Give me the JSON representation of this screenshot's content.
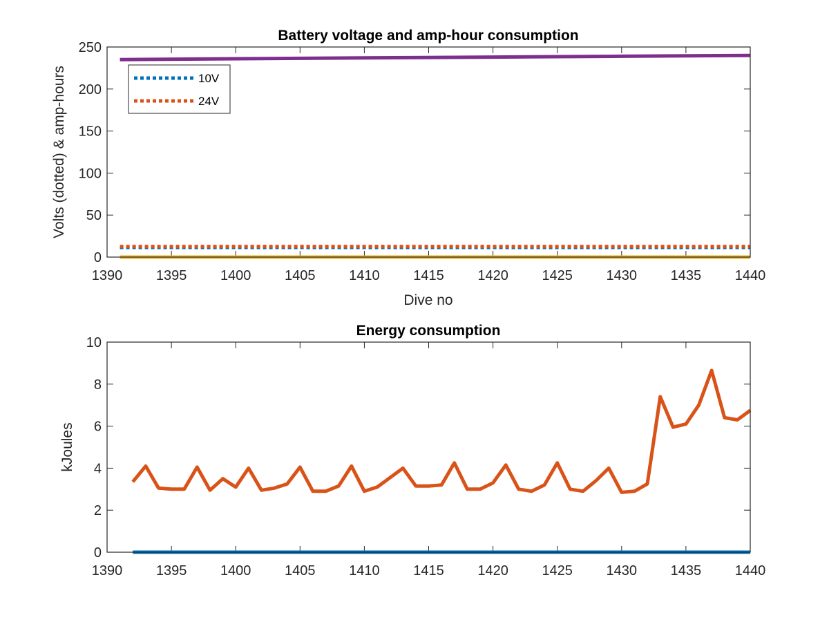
{
  "chart_data": [
    {
      "type": "line",
      "title": "Battery voltage and amp-hour consumption",
      "xlabel": "Dive no",
      "ylabel": "Volts (dotted) & amp-hours",
      "xlim": [
        1390,
        1440
      ],
      "ylim": [
        0,
        250
      ],
      "xticks": [
        "1390",
        "1395",
        "1400",
        "1405",
        "1410",
        "1415",
        "1420",
        "1425",
        "1430",
        "1435",
        "1440"
      ],
      "yticks": [
        "0",
        "50",
        "100",
        "150",
        "200",
        "250"
      ],
      "grid": false,
      "legend_position": "top-left",
      "series": [
        {
          "name": "10V",
          "style": "dotted",
          "color": "#0072BD",
          "x": [
            1391,
            1440
          ],
          "y": [
            11.5,
            11.5
          ]
        },
        {
          "name": "24V",
          "style": "dotted",
          "color": "#D95319",
          "x": [
            1391,
            1440
          ],
          "y": [
            12.5,
            12.5
          ]
        },
        {
          "style": "solid",
          "color": "#EDB120",
          "x": [
            1391,
            1440
          ],
          "y": [
            0,
            0
          ]
        },
        {
          "style": "solid",
          "color": "#7E2F8E",
          "x": [
            1391,
            1400,
            1410,
            1420,
            1430,
            1440
          ],
          "y": [
            235,
            236,
            237,
            238,
            239,
            240
          ]
        }
      ]
    },
    {
      "type": "line",
      "title": "Energy consumption",
      "xlabel": "",
      "ylabel": "kJoules",
      "xlim": [
        1390,
        1440
      ],
      "ylim": [
        0,
        10
      ],
      "xticks": [
        "1390",
        "1395",
        "1400",
        "1405",
        "1410",
        "1415",
        "1420",
        "1425",
        "1430",
        "1435",
        "1440"
      ],
      "yticks": [
        "0",
        "2",
        "4",
        "6",
        "8",
        "10"
      ],
      "grid": false,
      "series": [
        {
          "style": "solid",
          "color": "#0072BD",
          "x": [
            1392,
            1440
          ],
          "y": [
            0,
            0
          ]
        },
        {
          "style": "solid",
          "color": "#D95319",
          "x": [
            1392,
            1393,
            1394,
            1395,
            1396,
            1397,
            1398,
            1399,
            1400,
            1401,
            1402,
            1403,
            1404,
            1405,
            1406,
            1407,
            1408,
            1409,
            1410,
            1411,
            1412,
            1413,
            1414,
            1415,
            1416,
            1417,
            1418,
            1419,
            1420,
            1421,
            1422,
            1423,
            1424,
            1425,
            1426,
            1427,
            1428,
            1429,
            1430,
            1431,
            1432,
            1433,
            1434,
            1435,
            1436,
            1437,
            1438,
            1439,
            1440
          ],
          "y": [
            3.35,
            4.1,
            3.05,
            3.0,
            3.0,
            4.05,
            2.95,
            3.5,
            3.1,
            4.0,
            2.95,
            3.05,
            3.25,
            4.05,
            2.9,
            2.9,
            3.15,
            4.1,
            2.9,
            3.1,
            3.55,
            4.0,
            3.15,
            3.15,
            3.2,
            4.25,
            3.0,
            3.0,
            3.3,
            4.15,
            3.0,
            2.9,
            3.2,
            4.25,
            3.0,
            2.9,
            3.4,
            4.0,
            2.85,
            2.9,
            3.25,
            7.4,
            5.95,
            6.1,
            7.0,
            8.65,
            6.4,
            6.3,
            6.75
          ]
        }
      ]
    }
  ]
}
